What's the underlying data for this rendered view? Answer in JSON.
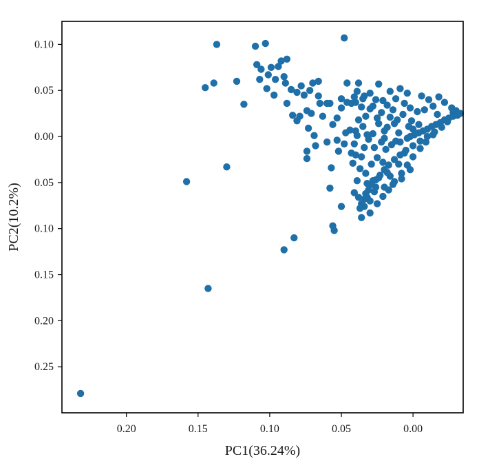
{
  "chart_data": {
    "type": "scatter",
    "title": "",
    "xlabel": "PC1(36.24%)",
    "ylabel": "PC2(10.2%)",
    "xlim": [
      0.245,
      -0.035
    ],
    "ylim": [
      -0.3,
      0.125
    ],
    "x_inverted": true,
    "grid": false,
    "legend": "none",
    "marker_color": "#1f6fa8",
    "x_ticks": [
      {
        "value": 0.2,
        "label": "0.20"
      },
      {
        "value": 0.15,
        "label": "0.15"
      },
      {
        "value": 0.1,
        "label": "0.10"
      },
      {
        "value": 0.05,
        "label": "0.05"
      },
      {
        "value": 0.0,
        "label": "0.00"
      }
    ],
    "y_ticks": [
      {
        "value": 0.1,
        "label": "0.10"
      },
      {
        "value": 0.05,
        "label": "0.05"
      },
      {
        "value": 0.0,
        "label": "0.00"
      },
      {
        "value": -0.05,
        "label": "0.05"
      },
      {
        "value": -0.1,
        "label": "0.10"
      },
      {
        "value": -0.15,
        "label": "0.15"
      },
      {
        "value": -0.2,
        "label": "0.20"
      },
      {
        "value": -0.25,
        "label": "0.25"
      }
    ],
    "series": [
      {
        "points": [
          [
            0.232,
            -0.279
          ],
          [
            0.143,
            -0.165
          ],
          [
            0.158,
            -0.049
          ],
          [
            0.13,
            -0.033
          ],
          [
            0.09,
            -0.123
          ],
          [
            0.083,
            -0.11
          ],
          [
            0.056,
            -0.097
          ],
          [
            0.055,
            -0.102
          ],
          [
            0.137,
            0.1
          ],
          [
            0.145,
            0.053
          ],
          [
            0.139,
            0.058
          ],
          [
            0.123,
            0.06
          ],
          [
            0.118,
            0.035
          ],
          [
            0.11,
            0.098
          ],
          [
            0.103,
            0.101
          ],
          [
            0.048,
            0.107
          ],
          [
            0.109,
            0.078
          ],
          [
            0.106,
            0.073
          ],
          [
            0.099,
            0.075
          ],
          [
            0.094,
            0.076
          ],
          [
            0.092,
            0.082
          ],
          [
            0.088,
            0.084
          ],
          [
            0.09,
            0.065
          ],
          [
            0.096,
            0.062
          ],
          [
            0.101,
            0.067
          ],
          [
            0.107,
            0.062
          ],
          [
            0.102,
            0.052
          ],
          [
            0.089,
            0.058
          ],
          [
            0.097,
            0.045
          ],
          [
            0.085,
            0.051
          ],
          [
            0.081,
            0.048
          ],
          [
            0.078,
            0.055
          ],
          [
            0.07,
            0.058
          ],
          [
            0.066,
            0.06
          ],
          [
            0.072,
            0.05
          ],
          [
            0.076,
            0.045
          ],
          [
            0.088,
            0.036
          ],
          [
            0.066,
            0.044
          ],
          [
            0.06,
            0.036
          ],
          [
            0.058,
            0.036
          ],
          [
            0.065,
            0.036
          ],
          [
            0.046,
            0.058
          ],
          [
            0.038,
            0.058
          ],
          [
            0.039,
            0.049
          ],
          [
            0.041,
            0.043
          ],
          [
            0.035,
            0.041
          ],
          [
            0.04,
            0.037
          ],
          [
            0.043,
            0.036
          ],
          [
            0.05,
            0.041
          ],
          [
            0.046,
            0.037
          ],
          [
            0.05,
            0.031
          ],
          [
            0.053,
            0.02
          ],
          [
            0.056,
            0.013
          ],
          [
            0.079,
            0.022
          ],
          [
            0.073,
            0.009
          ],
          [
            0.069,
            0.001
          ],
          [
            0.06,
            -0.006
          ],
          [
            0.084,
            0.023
          ],
          [
            0.074,
            0.028
          ],
          [
            0.063,
            0.022
          ],
          [
            0.081,
            0.017
          ],
          [
            0.071,
            0.025
          ],
          [
            0.068,
            -0.01
          ],
          [
            0.074,
            -0.016
          ],
          [
            0.074,
            -0.024
          ],
          [
            0.052,
            -0.016
          ],
          [
            0.048,
            -0.008
          ],
          [
            0.043,
            -0.018
          ],
          [
            0.057,
            -0.034
          ],
          [
            0.058,
            -0.056
          ],
          [
            0.05,
            -0.076
          ],
          [
            0.042,
            -0.029
          ],
          [
            0.053,
            -0.004
          ],
          [
            0.047,
            0.004
          ],
          [
            0.044,
            0.007
          ],
          [
            0.039,
            0.001
          ],
          [
            0.024,
            0.057
          ],
          [
            0.009,
            0.052
          ],
          [
            0.004,
            0.047
          ],
          [
            -0.006,
            0.044
          ],
          [
            -0.018,
            0.043
          ],
          [
            -0.011,
            0.04
          ],
          [
            -0.022,
            0.037
          ],
          [
            -0.027,
            0.031
          ],
          [
            -0.03,
            0.028
          ],
          [
            -0.033,
            0.025
          ],
          [
            -0.014,
            0.033
          ],
          [
            -0.028,
            0.026
          ],
          [
            -0.017,
            0.024
          ],
          [
            -0.028,
            0.022
          ],
          [
            -0.025,
            0.02
          ],
          [
            -0.022,
            0.018
          ],
          [
            -0.019,
            0.015
          ],
          [
            -0.016,
            0.013
          ],
          [
            -0.013,
            0.011
          ],
          [
            -0.01,
            0.008
          ],
          [
            -0.007,
            0.006
          ],
          [
            -0.004,
            0.004
          ],
          [
            -0.001,
            0.002
          ],
          [
            0.002,
            0.0
          ],
          [
            -0.02,
            0.01
          ],
          [
            -0.024,
            0.016
          ],
          [
            -0.031,
            0.023
          ],
          [
            -0.015,
            0.005
          ],
          [
            -0.01,
            0.0
          ],
          [
            -0.005,
            -0.005
          ],
          [
            0.0,
            -0.01
          ],
          [
            0.005,
            -0.015
          ],
          [
            0.009,
            -0.02
          ],
          [
            0.013,
            -0.025
          ],
          [
            0.017,
            -0.031
          ],
          [
            0.02,
            -0.036
          ],
          [
            0.023,
            -0.042
          ],
          [
            0.026,
            -0.047
          ],
          [
            0.029,
            -0.052
          ],
          [
            0.031,
            -0.058
          ],
          [
            0.033,
            -0.062
          ],
          [
            0.034,
            -0.068
          ],
          [
            0.036,
            -0.073
          ],
          [
            0.037,
            -0.078
          ],
          [
            0.036,
            -0.088
          ],
          [
            0.03,
            -0.083
          ],
          [
            0.025,
            -0.073
          ],
          [
            0.021,
            -0.065
          ],
          [
            0.017,
            -0.058
          ],
          [
            0.013,
            -0.049
          ],
          [
            0.008,
            -0.04
          ],
          [
            0.004,
            -0.031
          ],
          [
            0.0,
            -0.022
          ],
          [
            -0.005,
            -0.013
          ],
          [
            -0.009,
            -0.006
          ],
          [
            -0.014,
            0.002
          ],
          [
            0.002,
            -0.036
          ],
          [
            0.008,
            -0.046
          ],
          [
            0.014,
            -0.052
          ],
          [
            0.02,
            -0.055
          ],
          [
            0.027,
            -0.06
          ],
          [
            0.032,
            -0.066
          ],
          [
            0.026,
            -0.055
          ],
          [
            0.016,
            -0.043
          ],
          [
            0.01,
            -0.03
          ],
          [
            0.006,
            -0.018
          ],
          [
            0.012,
            -0.005
          ],
          [
            0.018,
            0.01
          ],
          [
            0.022,
            0.026
          ],
          [
            0.026,
            0.04
          ],
          [
            0.03,
            0.047
          ],
          [
            0.034,
            0.044
          ],
          [
            0.028,
            0.033
          ],
          [
            0.024,
            0.014
          ],
          [
            0.028,
            0.003
          ],
          [
            0.031,
            -0.003
          ],
          [
            0.027,
            -0.012
          ],
          [
            0.025,
            -0.023
          ],
          [
            0.029,
            -0.03
          ],
          [
            0.033,
            -0.04
          ],
          [
            0.037,
            -0.035
          ],
          [
            0.036,
            -0.022
          ],
          [
            0.034,
            -0.012
          ],
          [
            0.032,
            0.002
          ],
          [
            0.035,
            0.011
          ],
          [
            0.033,
            0.022
          ],
          [
            0.03,
            0.03
          ],
          [
            0.021,
            0.039
          ],
          [
            0.016,
            0.049
          ],
          [
            0.012,
            0.041
          ],
          [
            0.006,
            0.036
          ],
          [
            0.002,
            0.031
          ],
          [
            -0.003,
            0.027
          ],
          [
            -0.008,
            0.029
          ],
          [
            0.001,
            0.017
          ],
          [
            0.007,
            0.024
          ],
          [
            0.014,
            0.029
          ],
          [
            0.018,
            0.034
          ],
          [
            0.011,
            0.018
          ],
          [
            0.016,
            0.021
          ],
          [
            0.02,
            0.006
          ],
          [
            0.022,
            -0.006
          ],
          [
            0.019,
            -0.014
          ],
          [
            0.015,
            -0.009
          ],
          [
            0.009,
            -0.006
          ],
          [
            0.004,
            -0.002
          ],
          [
            0.0,
            0.008
          ],
          [
            -0.004,
            0.013
          ],
          [
            0.003,
            0.011
          ],
          [
            0.01,
            0.004
          ],
          [
            0.013,
            0.014
          ],
          [
            0.021,
            -0.028
          ],
          [
            0.018,
            -0.039
          ],
          [
            0.024,
            -0.045
          ],
          [
            0.028,
            -0.048
          ],
          [
            0.032,
            -0.051
          ],
          [
            0.03,
            -0.07
          ],
          [
            0.034,
            -0.076
          ],
          [
            0.02,
            -0.002
          ],
          [
            0.025,
            0.02
          ],
          [
            0.036,
            0.032
          ],
          [
            0.038,
            0.018
          ],
          [
            0.04,
            0.006
          ],
          [
            0.041,
            -0.008
          ],
          [
            0.04,
            -0.02
          ],
          [
            0.039,
            -0.048
          ],
          [
            0.041,
            -0.061
          ],
          [
            0.038,
            -0.066
          ]
        ]
      }
    ]
  }
}
